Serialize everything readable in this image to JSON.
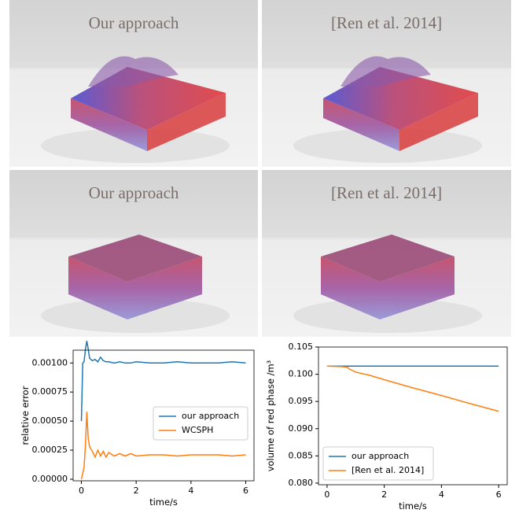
{
  "images": [
    {
      "label": "Our approach"
    },
    {
      "label": "[Ren et al. 2014]"
    },
    {
      "label": "Our approach"
    },
    {
      "label": "[Ren et al. 2014]"
    }
  ],
  "chart_data": [
    {
      "type": "line",
      "xlabel": "time/s",
      "ylabel": "relative error",
      "x": [
        0,
        0.05,
        0.1,
        0.15,
        0.2,
        0.25,
        0.3,
        0.4,
        0.5,
        0.6,
        0.7,
        0.8,
        0.9,
        1.0,
        1.2,
        1.4,
        1.6,
        1.8,
        2.0,
        2.5,
        3.0,
        3.5,
        4.0,
        4.5,
        5.0,
        5.5,
        6.0
      ],
      "series": [
        {
          "name": "our approach",
          "color": "#1f77b4",
          "values": [
            0.0005,
            0.001,
            0.00101,
            0.00112,
            0.00119,
            0.00112,
            0.00104,
            0.00102,
            0.00103,
            0.00101,
            0.00105,
            0.00102,
            0.00101,
            0.00101,
            0.001,
            0.00101,
            0.001,
            0.001,
            0.00101,
            0.001,
            0.001,
            0.00101,
            0.001,
            0.001,
            0.001,
            0.00101,
            0.001
          ]
        },
        {
          "name": "WCSPH",
          "color": "#ff7f0e",
          "values": [
            0,
            5e-05,
            0.0001,
            0.0003,
            0.00058,
            0.00035,
            0.00028,
            0.00024,
            0.00019,
            0.00025,
            0.0002,
            0.00024,
            0.00019,
            0.00023,
            0.0002,
            0.00022,
            0.0002,
            0.00022,
            0.0002,
            0.00021,
            0.00021,
            0.0002,
            0.00021,
            0.00021,
            0.00021,
            0.0002,
            0.00021
          ]
        }
      ],
      "xlim": [
        -0.3,
        6.3
      ],
      "xticks": [
        0,
        2,
        4,
        6
      ],
      "ylim": [
        -1.35e-05,
        0.00111
      ],
      "yticks": [
        {
          "value": 0,
          "label": "0.00000"
        },
        {
          "value": 0.00025,
          "label": "0.00025"
        },
        {
          "value": 0.0005,
          "label": "0.00050"
        },
        {
          "value": 0.00075,
          "label": "0.00075"
        },
        {
          "value": 0.001,
          "label": "0.00100"
        }
      ],
      "legend": "center right"
    },
    {
      "type": "line",
      "xlabel": "time/s",
      "ylabel": "volume of red phase /m³",
      "x": [
        0,
        0.5,
        0.7,
        0.8,
        1.0,
        1.5,
        2,
        3,
        4,
        5,
        6
      ],
      "series": [
        {
          "name": "our approach",
          "color": "#1f77b4",
          "values": [
            0.1015,
            0.1015,
            0.1015,
            0.1015,
            0.1015,
            0.1015,
            0.1015,
            0.1015,
            0.1015,
            0.1015,
            0.1015
          ]
        },
        {
          "name": "[Ren et al. 2014]",
          "color": "#ff7f0e",
          "values": [
            0.1015,
            0.1014,
            0.1013,
            0.1009,
            0.1004,
            0.0998,
            0.099,
            0.0975,
            0.0961,
            0.0946,
            0.0932
          ]
        }
      ],
      "xlim": [
        -0.3,
        6.3
      ],
      "xticks": [
        0,
        2,
        4,
        6
      ],
      "ylim": [
        0.0797,
        0.105
      ],
      "yticks": [
        {
          "value": 0.08,
          "label": "0.080"
        },
        0.085,
        {
          "value": 0.09,
          "label": "0.090"
        },
        0.095,
        {
          "value": 0.1,
          "label": "0.100"
        },
        0.105
      ],
      "legend": "lower left"
    }
  ]
}
